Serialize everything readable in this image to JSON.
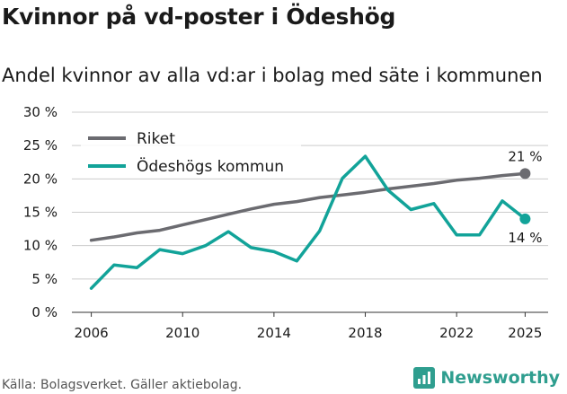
{
  "title": "Kvinnor på vd-poster i Ödeshög",
  "subtitle": "Andel kvinnor av alla vd:ar i bolag med säte i kommunen",
  "source": "Källa: Bolagsverket. Gäller aktiebolag.",
  "brand": {
    "name": "Newsworthy",
    "icon": "bar-chart-icon"
  },
  "colors": {
    "riket": "#6b6b70",
    "kommun": "#12a399",
    "grid": "#cccccc",
    "text": "#1a1a1a"
  },
  "chart_data": {
    "type": "line",
    "x": [
      2006,
      2007,
      2008,
      2009,
      2010,
      2011,
      2012,
      2013,
      2014,
      2015,
      2016,
      2017,
      2018,
      2019,
      2020,
      2021,
      2022,
      2023,
      2024,
      2025
    ],
    "series": [
      {
        "name": "Riket",
        "color": "#6b6b70",
        "values": [
          10.8,
          11.3,
          11.9,
          12.3,
          13.1,
          13.9,
          14.7,
          15.5,
          16.2,
          16.6,
          17.2,
          17.6,
          18.0,
          18.5,
          18.9,
          19.3,
          19.8,
          20.1,
          20.5,
          20.8
        ],
        "end_label": "21 %"
      },
      {
        "name": "Ödeshögs kommun",
        "color": "#12a399",
        "values": [
          3.6,
          7.1,
          6.7,
          9.4,
          8.8,
          10.0,
          12.1,
          9.7,
          9.1,
          7.7,
          12.2,
          20.1,
          23.4,
          18.3,
          15.4,
          16.3,
          11.6,
          11.6,
          16.7,
          14.0
        ],
        "end_label": "14 %"
      }
    ],
    "xticks": [
      "2006",
      "2010",
      "2014",
      "2018",
      "2022",
      "2025"
    ],
    "yticks": [
      "0 %",
      "5 %",
      "10 %",
      "15 %",
      "20 %",
      "25 %",
      "30 %"
    ],
    "ylim": [
      0,
      30
    ],
    "xlim": [
      2006,
      2025
    ],
    "legend": [
      "Riket",
      "Ödeshögs kommun"
    ],
    "legend_position": "top-left",
    "xlabel": "",
    "ylabel": ""
  }
}
